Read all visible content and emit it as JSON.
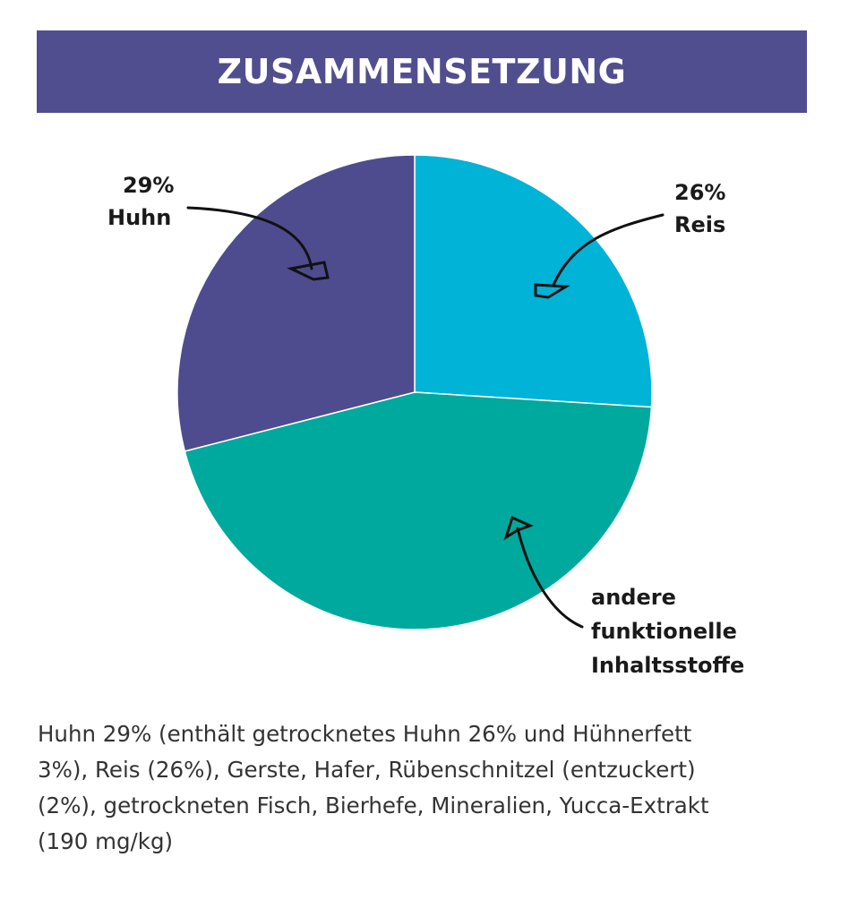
{
  "header": {
    "title": "ZUSAMMENSETZUNG"
  },
  "chart_data": {
    "type": "pie",
    "title": "ZUSAMMENSETZUNG",
    "slices": [
      {
        "label": "Reis",
        "value": 26,
        "value_label": "26%",
        "color": "#00b3d7"
      },
      {
        "label": "andere funktionelle Inhaltsstoffe",
        "value": 45,
        "value_label": "",
        "color": "#00a99d"
      },
      {
        "label": "Huhn",
        "value": 29,
        "value_label": "29%",
        "color": "#4e4c8e"
      }
    ],
    "labels": {
      "reis_pct": "26%",
      "reis": "Reis",
      "huhn_pct": "29%",
      "huhn": "Huhn",
      "andere_1": "andere",
      "andere_2": "funktionelle",
      "andere_3": "Inhaltsstoffe"
    }
  },
  "description": {
    "lines": [
      "Huhn 29% (enthält getrocknetes Huhn 26% und Hühnerfett",
      "3%), Reis (26%), Gerste, Hafer, Rübenschnitzel (entzuckert)",
      "(2%), getrockneten Fisch, Bierhefe, Mineralien, Yucca-Extrakt",
      "(190 mg/kg)"
    ]
  }
}
